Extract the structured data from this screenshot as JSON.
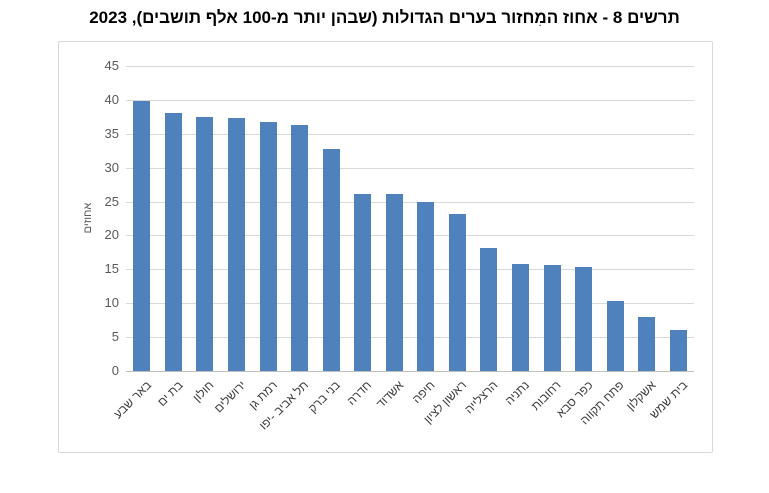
{
  "title": "תרשים 8 - אחוז המִחזור בערים הגדולות (שבהן יותר מ-100 אלף תושבים), 2023",
  "chart_data": {
    "type": "bar",
    "title": "תרשים 8 - אחוז המִחזור בערים הגדולות (שבהן יותר מ-100 אלף תושבים), 2023",
    "xlabel": "",
    "ylabel": "אחוזים",
    "ylim": [
      0,
      45
    ],
    "ytick_step": 5,
    "grid": true,
    "legend": false,
    "direction": "rtl",
    "categories": [
      "באר שבע",
      "בת ים",
      "חולון",
      "ירושלים",
      "רמת גן",
      "תל אביב -יפו",
      "בני ברק",
      "חדרה",
      "אשדוד",
      "חיפה",
      "ראשון לציון",
      "הרצלייה",
      "נתניה",
      "רחובות",
      "כפר סבא",
      "פתח תקווה",
      "אשקלון",
      "בית שמש"
    ],
    "values": [
      39.9,
      38.1,
      37.5,
      37.4,
      36.7,
      36.3,
      32.8,
      26.1,
      26.1,
      25.0,
      23.1,
      18.2,
      15.8,
      15.6,
      15.3,
      10.4,
      8.0,
      6.1
    ],
    "colors": {
      "bar": "#4F81BD",
      "gridline": "#d9d9d9",
      "axis_line": "#bfbfbf",
      "tick_label": "#595959",
      "title": "#000000"
    }
  }
}
